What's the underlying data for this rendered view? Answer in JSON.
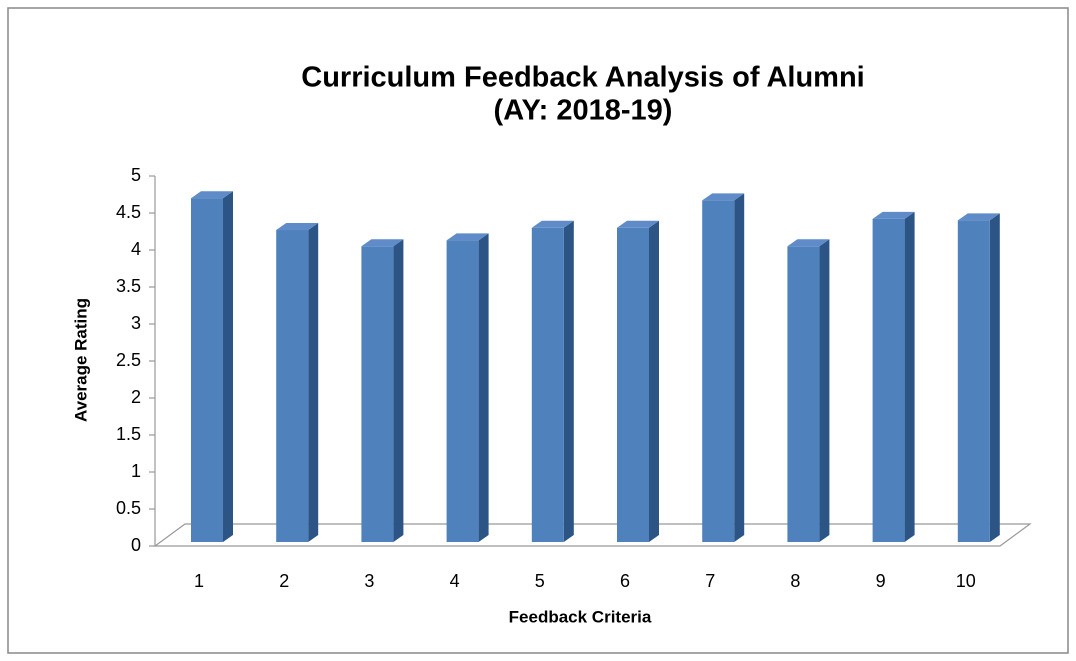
{
  "chart_data": {
    "type": "bar",
    "title": "Curriculum Feedback Analysis of Alumni",
    "subtitle": "(AY: 2018-19)",
    "x_label": "Feedback Criteria",
    "y_label": "Average Rating",
    "categories": [
      "1",
      "2",
      "3",
      "4",
      "5",
      "6",
      "7",
      "8",
      "9",
      "10"
    ],
    "values": [
      4.7,
      4.27,
      4.05,
      4.13,
      4.3,
      4.3,
      4.67,
      4.05,
      4.42,
      4.4
    ],
    "color": "#4f81bd",
    "ylim": [
      0,
      5
    ],
    "yticks": [
      0,
      0.5,
      1,
      1.5,
      2,
      2.5,
      3,
      3.5,
      4,
      4.5,
      5
    ],
    "grid": false
  }
}
